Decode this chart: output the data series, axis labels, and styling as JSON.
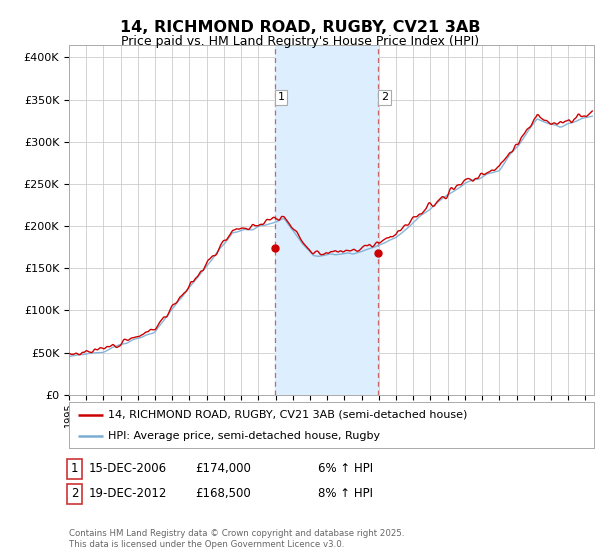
{
  "title": "14, RICHMOND ROAD, RUGBY, CV21 3AB",
  "subtitle": "Price paid vs. HM Land Registry's House Price Index (HPI)",
  "ylabel_ticks": [
    "£0",
    "£50K",
    "£100K",
    "£150K",
    "£200K",
    "£250K",
    "£300K",
    "£350K",
    "£400K"
  ],
  "ytick_values": [
    0,
    50000,
    100000,
    150000,
    200000,
    250000,
    300000,
    350000,
    400000
  ],
  "ylim": [
    0,
    415000
  ],
  "xlim_start": 1995.0,
  "xlim_end": 2025.5,
  "sale1_date": 2006.96,
  "sale1_price": 174000,
  "sale2_date": 2012.96,
  "sale2_price": 168500,
  "red_line_color": "#cc0000",
  "blue_line_color": "#7aadd4",
  "highlight_fill": "#ddeeff",
  "dashed_line_color": "#cc6666",
  "grid_color": "#cccccc",
  "bg_color": "#ffffff",
  "legend_label_red": "14, RICHMOND ROAD, RUGBY, CV21 3AB (semi-detached house)",
  "legend_label_blue": "HPI: Average price, semi-detached house, Rugby",
  "footnote": "Contains HM Land Registry data © Crown copyright and database right 2025.\nThis data is licensed under the Open Government Licence v3.0.",
  "note1_date": "15-DEC-2006",
  "note1_price": "£174,000",
  "note1_hpi": "6% ↑ HPI",
  "note2_date": "19-DEC-2012",
  "note2_price": "£168,500",
  "note2_hpi": "8% ↑ HPI"
}
